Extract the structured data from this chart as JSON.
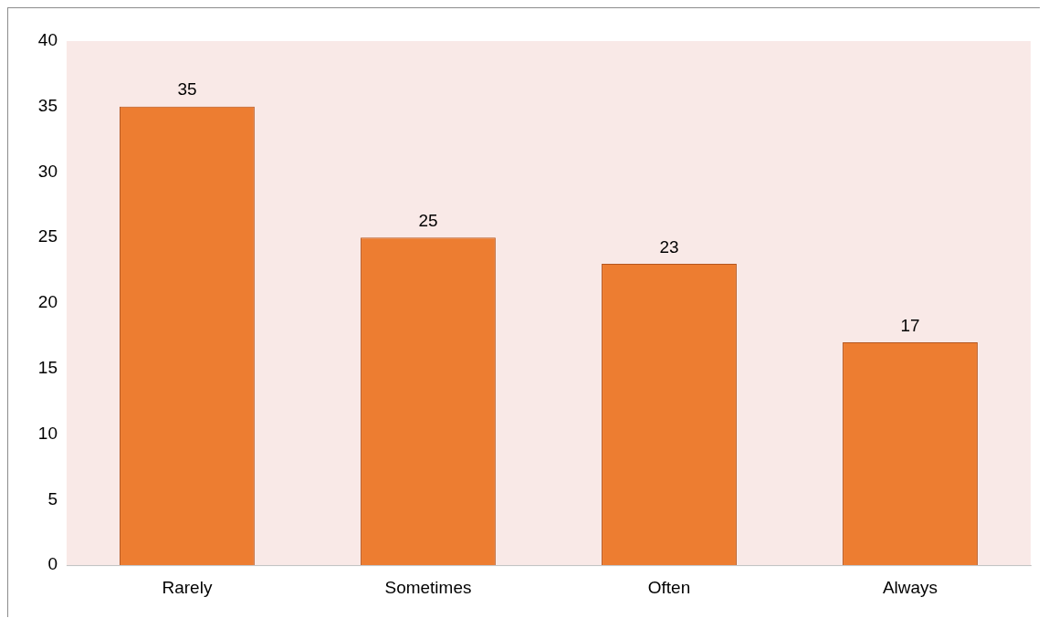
{
  "chart_data": {
    "type": "bar",
    "categories": [
      "Rarely",
      "Sometimes",
      "Often",
      "Always"
    ],
    "values": [
      35,
      25,
      23,
      17
    ],
    "color": "#ed7d31",
    "ylim": [
      0,
      40
    ],
    "yticks": [
      0,
      5,
      10,
      15,
      20,
      25,
      30,
      35,
      40
    ],
    "grid": false,
    "legend": false,
    "data_labels": true
  }
}
